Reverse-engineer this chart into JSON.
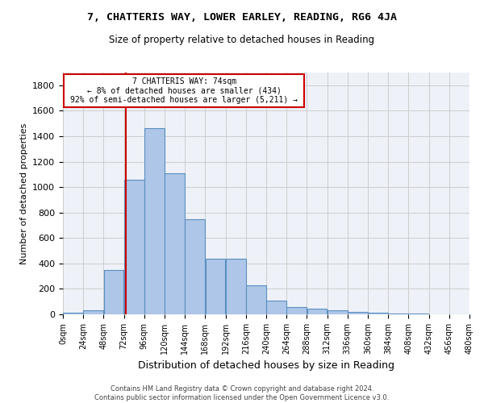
{
  "title1": "7, CHATTERIS WAY, LOWER EARLEY, READING, RG6 4JA",
  "title2": "Size of property relative to detached houses in Reading",
  "xlabel": "Distribution of detached houses by size in Reading",
  "ylabel": "Number of detached properties",
  "footer1": "Contains HM Land Registry data © Crown copyright and database right 2024.",
  "footer2": "Contains public sector information licensed under the Open Government Licence v3.0.",
  "annotation_title": "7 CHATTERIS WAY: 74sqm",
  "annotation_line1": "← 8% of detached houses are smaller (434)",
  "annotation_line2": "92% of semi-detached houses are larger (5,211) →",
  "property_size": 74,
  "bin_edges": [
    0,
    24,
    48,
    72,
    96,
    120,
    144,
    168,
    192,
    216,
    240,
    264,
    288,
    312,
    336,
    360,
    384,
    408,
    432,
    456,
    480
  ],
  "bar_values": [
    10,
    30,
    350,
    1060,
    1460,
    1110,
    750,
    435,
    435,
    225,
    110,
    55,
    45,
    30,
    20,
    10,
    5,
    5,
    2,
    2
  ],
  "bar_color": "#aec6e8",
  "bar_edge_color": "#5a8fc0",
  "vline_color": "#cc0000",
  "vline_x": 74,
  "annotation_box_color": "#cc0000",
  "annotation_text_color": "#000000",
  "background_color": "#eef2f8",
  "ylim": [
    0,
    1900
  ],
  "yticks": [
    0,
    200,
    400,
    600,
    800,
    1000,
    1200,
    1400,
    1600,
    1800
  ]
}
